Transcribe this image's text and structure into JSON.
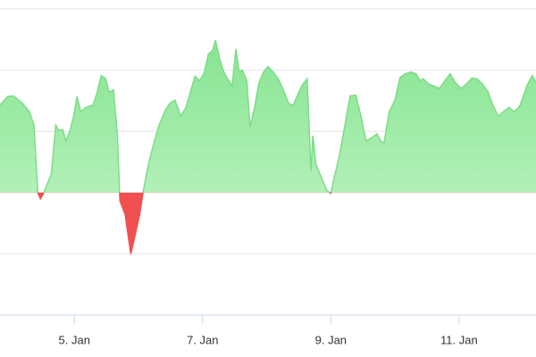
{
  "chart_data": {
    "type": "area",
    "color": "#7ddc87",
    "negative_color": "#f05050",
    "grid": true,
    "xlim": [
      3.84,
      12.2
    ],
    "ylim": [
      -2,
      3
    ],
    "yticks": [
      -2,
      -1,
      0,
      1,
      2,
      3
    ],
    "xticks": [
      {
        "value": 5,
        "label": "5. Jan"
      },
      {
        "value": 7,
        "label": "7. Jan"
      },
      {
        "value": 9,
        "label": "9. Jan"
      },
      {
        "value": 11,
        "label": "11. Jan"
      }
    ],
    "x": [
      3.84,
      3.96,
      4.05,
      4.19,
      4.3,
      4.37,
      4.43,
      4.47,
      4.51,
      4.57,
      4.64,
      4.71,
      4.76,
      4.82,
      4.87,
      4.93,
      4.99,
      5.04,
      5.1,
      5.18,
      5.29,
      5.35,
      5.42,
      5.49,
      5.54,
      5.61,
      5.67,
      5.71,
      5.79,
      5.88,
      5.93,
      6.02,
      6.07,
      6.16,
      6.24,
      6.32,
      6.41,
      6.49,
      6.57,
      6.66,
      6.74,
      6.82,
      6.88,
      6.95,
      7.02,
      7.09,
      7.16,
      7.2,
      7.27,
      7.33,
      7.39,
      7.46,
      7.52,
      7.57,
      7.62,
      7.69,
      7.74,
      7.81,
      7.88,
      7.95,
      8.02,
      8.1,
      8.18,
      8.27,
      8.34,
      8.41,
      8.48,
      8.55,
      8.63,
      8.69,
      8.72,
      8.77,
      8.86,
      8.94,
      9.0,
      9.05,
      9.13,
      9.22,
      9.3,
      9.39,
      9.47,
      9.55,
      9.64,
      9.72,
      9.78,
      9.83,
      9.91,
      10.0,
      10.08,
      10.16,
      10.25,
      10.33,
      10.39,
      10.44,
      10.53,
      10.61,
      10.69,
      10.78,
      10.86,
      10.94,
      11.03,
      11.11,
      11.2,
      11.28,
      11.36,
      11.45,
      11.53,
      11.61,
      11.7,
      11.78,
      11.86,
      11.95,
      12.06,
      12.14,
      12.2
    ],
    "values": [
      1.43,
      1.57,
      1.58,
      1.46,
      1.32,
      1.1,
      0,
      -0.1,
      -0.03,
      0.12,
      0.3,
      1.1,
      1.01,
      1.03,
      0.84,
      1.01,
      1.25,
      1.57,
      1.32,
      1.39,
      1.43,
      1.62,
      1.91,
      1.86,
      1.64,
      1.68,
      0.96,
      -0.13,
      -0.35,
      -1.0,
      -0.78,
      -0.35,
      0,
      0.49,
      0.81,
      1.1,
      1.33,
      1.46,
      1.51,
      1.25,
      1.39,
      1.68,
      1.9,
      1.83,
      1.94,
      2.26,
      2.33,
      2.49,
      2.17,
      1.97,
      1.86,
      1.74,
      2.35,
      1.97,
      2.0,
      1.83,
      1.07,
      1.39,
      1.8,
      1.97,
      2.06,
      1.97,
      1.86,
      1.65,
      1.46,
      1.42,
      1.59,
      1.75,
      1.86,
      0.35,
      0.93,
      0.45,
      0.23,
      0.03,
      -0.01,
      0.23,
      0.59,
      1.1,
      1.58,
      1.59,
      1.25,
      0.84,
      0.9,
      0.96,
      0.84,
      0.81,
      1.32,
      1.51,
      1.88,
      1.94,
      1.97,
      1.94,
      1.83,
      1.86,
      1.77,
      1.74,
      1.7,
      1.83,
      1.94,
      1.8,
      1.7,
      1.77,
      1.87,
      1.86,
      1.78,
      1.65,
      1.42,
      1.25,
      1.33,
      1.39,
      1.32,
      1.42,
      1.75,
      1.91,
      1.8
    ]
  }
}
